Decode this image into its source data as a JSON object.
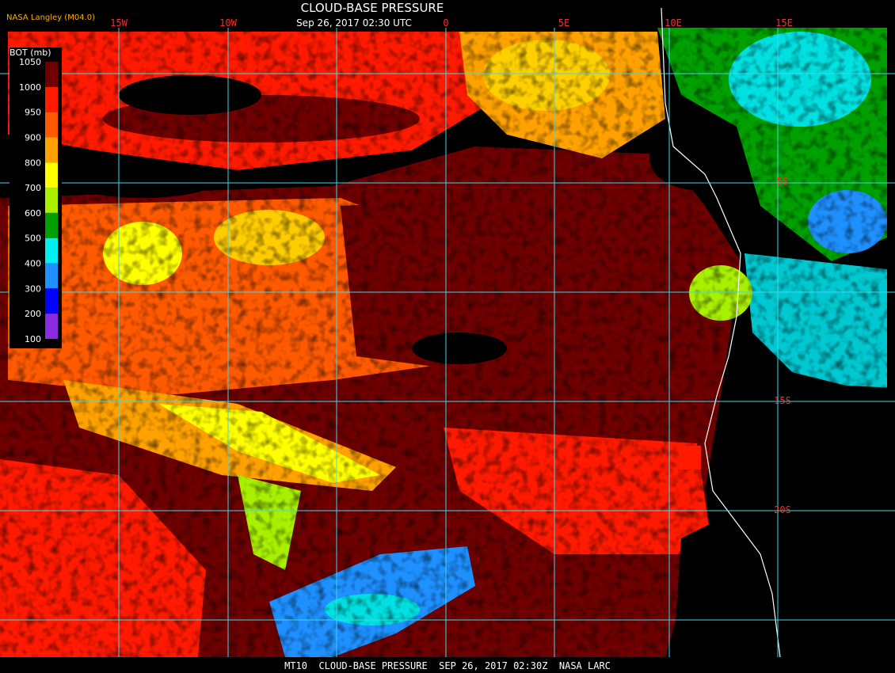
{
  "header": {
    "source": "NASA Langley (M04.0)",
    "title": "CLOUD-BASE PRESSURE",
    "timestamp": "Sep 26, 2017 02:30 UTC"
  },
  "longitude_labels": [
    "15W",
    "10W",
    "0",
    "5E",
    "10E",
    "15E"
  ],
  "latitude_labels": [
    "5S",
    "15S",
    "20S"
  ],
  "legend": {
    "title": "BOT (mb)",
    "labels": [
      "1050",
      "1000",
      "950",
      "900",
      "800",
      "700",
      "600",
      "500",
      "400",
      "300",
      "200",
      "100"
    ],
    "colors": [
      "#6e0000",
      "#ff1a00",
      "#ff5a00",
      "#ffa200",
      "#ffff00",
      "#a8f000",
      "#00a000",
      "#00f0f0",
      "#1e90ff",
      "#0000ff",
      "#8a2be2"
    ]
  },
  "footer": "MT10  CLOUD-BASE PRESSURE  SEP 26, 2017 02:30Z  NASA LARC"
}
